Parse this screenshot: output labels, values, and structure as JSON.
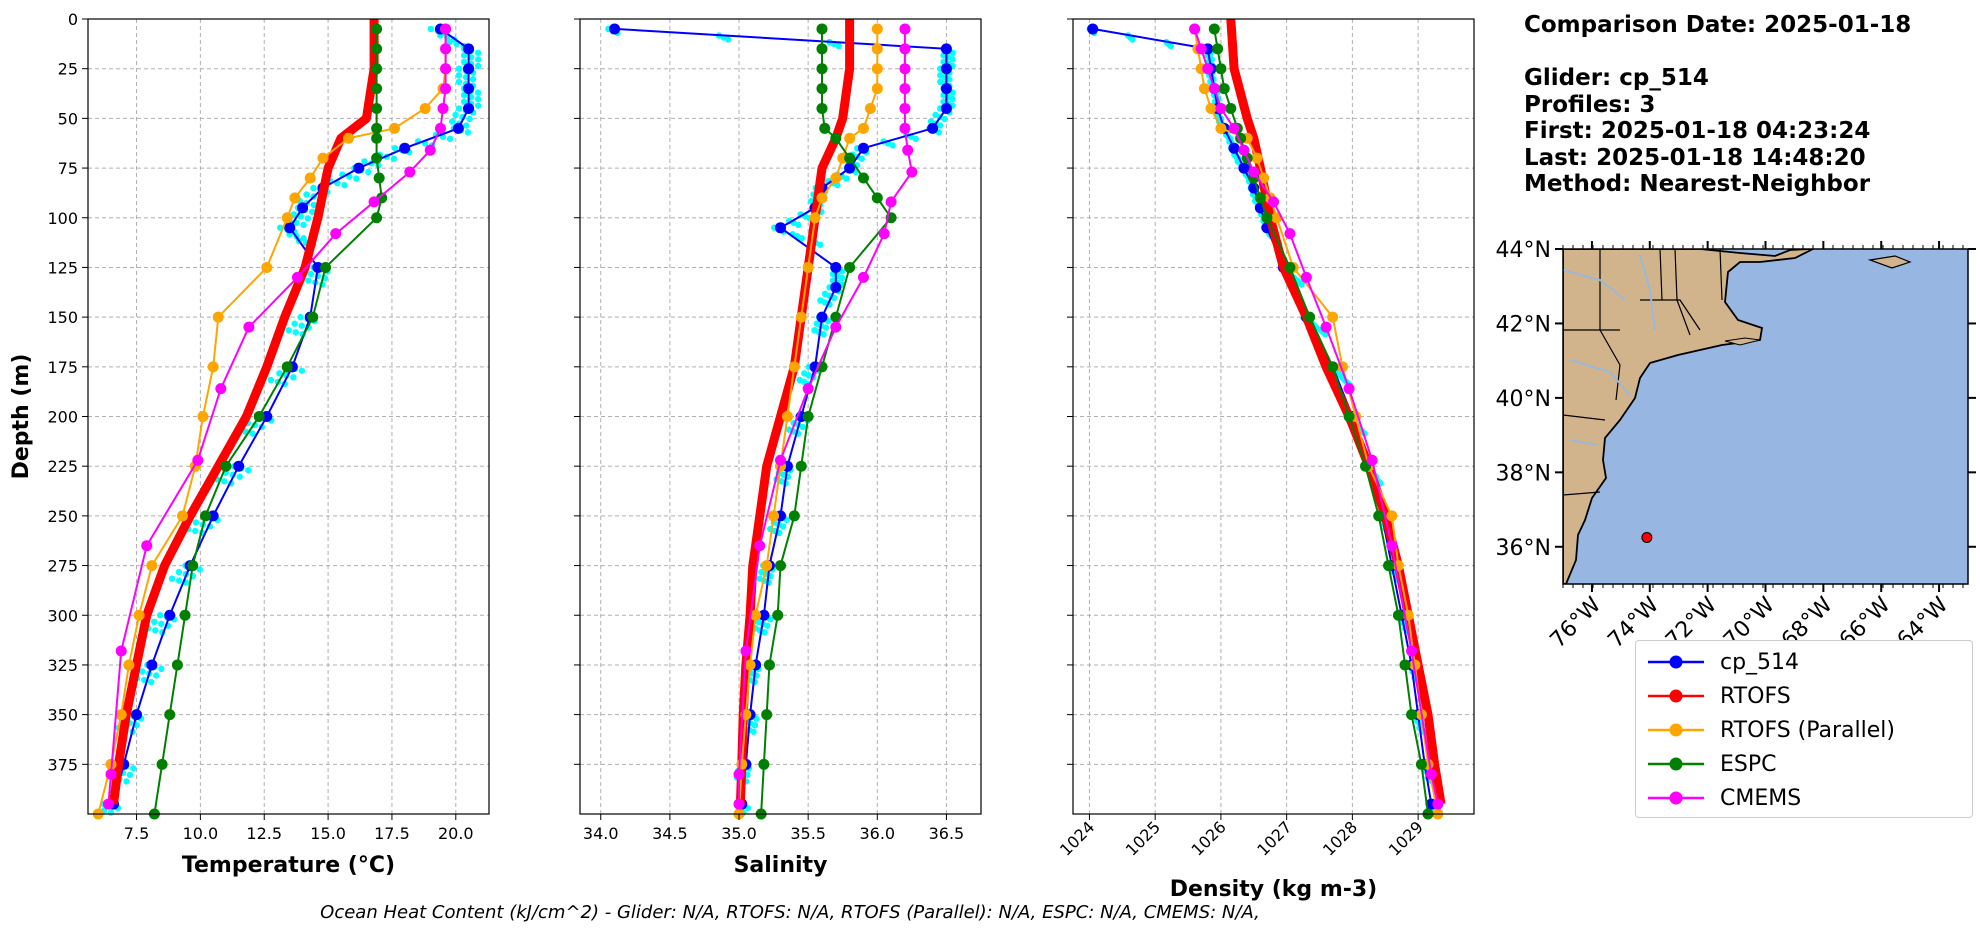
{
  "info": {
    "comparison_date": "Comparison Date: 2025-01-18",
    "glider": "Glider: cp_514",
    "profiles": "Profiles: 3",
    "first": "First: 2025-01-18 04:23:24",
    "last": "Last: 2025-01-18 14:48:20",
    "method": "Method: Nearest-Neighbor"
  },
  "caption": "Ocean Heat Content (kJ/cm^2) - Glider: N/A,  RTOFS: N/A,  RTOFS (Parallel): N/A,  ESPC: N/A,  CMEMS: N/A,",
  "colors": {
    "cp_514": "#0000ff",
    "RTOFS": "#ff0000",
    "RTOFS (Parallel)": "#ffa500",
    "ESPC": "#008000",
    "CMEMS": "#ff00ff",
    "glider_raw": "#00ffff",
    "land": "#d2b48c",
    "ocean": "#97b6e1",
    "rivers": "#9ab8d8"
  },
  "legend": [
    {
      "label": "cp_514",
      "color": "#0000ff"
    },
    {
      "label": "RTOFS",
      "color": "#ff0000"
    },
    {
      "label": "RTOFS (Parallel)",
      "color": "#ffa500"
    },
    {
      "label": "ESPC",
      "color": "#008000"
    },
    {
      "label": "CMEMS",
      "color": "#ff00ff"
    }
  ],
  "chart_data": [
    {
      "type": "line",
      "xlabel": "Temperature (°C)",
      "ylabel": "Depth (m)",
      "xlim": [
        5.6,
        21.3
      ],
      "ylim": [
        400,
        0
      ],
      "xticks": [
        7.5,
        10.0,
        12.5,
        15.0,
        17.5,
        20.0
      ],
      "xticklabels": [
        "7.5",
        "10.0",
        "12.5",
        "15.0",
        "17.5",
        "20.0"
      ],
      "yticks": [
        0,
        25,
        50,
        75,
        100,
        125,
        150,
        175,
        200,
        225,
        250,
        275,
        300,
        325,
        350,
        375
      ],
      "grid": true,
      "series": [
        {
          "name": "cp_514",
          "depth": [
            5,
            15,
            25,
            35,
            45,
            55,
            65,
            75,
            85,
            95,
            105,
            125,
            150,
            175,
            200,
            225,
            250,
            275,
            300,
            325,
            350,
            375,
            395
          ],
          "values": [
            19.4,
            20.5,
            20.5,
            20.5,
            20.5,
            20.1,
            18.0,
            16.2,
            14.8,
            14.0,
            13.5,
            14.6,
            14.3,
            13.6,
            12.6,
            11.5,
            10.5,
            9.6,
            8.8,
            8.1,
            7.5,
            7.0,
            6.6
          ]
        },
        {
          "name": "RTOFS",
          "depth": [
            0,
            25,
            50,
            60,
            75,
            100,
            125,
            150,
            175,
            200,
            225,
            250,
            275,
            300,
            325,
            350,
            375,
            395
          ],
          "values": [
            16.8,
            16.8,
            16.5,
            15.5,
            15.0,
            14.6,
            14.1,
            13.3,
            12.6,
            11.8,
            10.7,
            9.6,
            8.6,
            7.9,
            7.5,
            7.1,
            6.8,
            6.6
          ]
        },
        {
          "name": "RTOFS (Parallel)",
          "depth": [
            5,
            15,
            25,
            35,
            45,
            55,
            60,
            70,
            80,
            90,
            100,
            125,
            150,
            175,
            200,
            225,
            250,
            275,
            300,
            325,
            350,
            375,
            400
          ],
          "values": [
            19.6,
            19.6,
            19.6,
            19.5,
            18.8,
            17.6,
            15.8,
            14.8,
            14.3,
            13.7,
            13.4,
            12.6,
            10.7,
            10.5,
            10.1,
            9.8,
            9.3,
            8.1,
            7.6,
            7.2,
            6.9,
            6.5,
            6.0
          ]
        },
        {
          "name": "ESPC",
          "depth": [
            5,
            15,
            25,
            35,
            45,
            55,
            60,
            70,
            80,
            90,
            100,
            125,
            150,
            175,
            200,
            225,
            250,
            275,
            300,
            325,
            350,
            375,
            400
          ],
          "values": [
            16.9,
            16.9,
            16.9,
            16.9,
            16.9,
            16.9,
            16.9,
            16.9,
            17.0,
            17.1,
            16.9,
            14.9,
            14.4,
            13.4,
            12.3,
            11.0,
            10.2,
            9.7,
            9.4,
            9.1,
            8.8,
            8.5,
            8.2
          ]
        },
        {
          "name": "CMEMS",
          "depth": [
            5,
            15,
            25,
            35,
            45,
            55,
            66,
            77,
            92,
            108,
            130,
            155,
            186,
            222,
            265,
            318,
            380,
            395
          ],
          "values": [
            19.6,
            19.6,
            19.6,
            19.6,
            19.5,
            19.4,
            19.0,
            18.2,
            16.8,
            15.3,
            13.8,
            11.9,
            10.8,
            9.9,
            7.9,
            6.9,
            6.5,
            6.4
          ]
        }
      ]
    },
    {
      "type": "line",
      "xlabel": "Salinity",
      "xlim": [
        33.85,
        36.75
      ],
      "ylim": [
        400,
        0
      ],
      "xticks": [
        34.0,
        34.5,
        35.0,
        35.5,
        36.0,
        36.5
      ],
      "xticklabels": [
        "34.0",
        "34.5",
        "35.0",
        "35.5",
        "36.0",
        "36.5"
      ],
      "grid": true,
      "series": [
        {
          "name": "cp_514",
          "depth": [
            5,
            15,
            25,
            35,
            45,
            55,
            65,
            75,
            85,
            95,
            105,
            125,
            135,
            150,
            175,
            200,
            225,
            250,
            275,
            300,
            325,
            350,
            375,
            395
          ],
          "values": [
            34.1,
            36.5,
            36.5,
            36.5,
            36.5,
            36.4,
            35.9,
            35.8,
            35.6,
            35.55,
            35.3,
            35.7,
            35.7,
            35.6,
            35.55,
            35.45,
            35.35,
            35.3,
            35.22,
            35.18,
            35.12,
            35.08,
            35.05,
            35.02
          ]
        },
        {
          "name": "RTOFS",
          "depth": [
            0,
            25,
            50,
            60,
            75,
            100,
            125,
            150,
            175,
            200,
            225,
            250,
            275,
            300,
            325,
            350,
            375,
            395
          ],
          "values": [
            35.8,
            35.8,
            35.75,
            35.7,
            35.6,
            35.55,
            35.5,
            35.45,
            35.4,
            35.3,
            35.2,
            35.15,
            35.1,
            35.08,
            35.05,
            35.03,
            35.02,
            35.01
          ]
        },
        {
          "name": "RTOFS (Parallel)",
          "depth": [
            5,
            15,
            25,
            35,
            45,
            55,
            60,
            70,
            80,
            90,
            100,
            125,
            150,
            175,
            200,
            225,
            250,
            275,
            300,
            325,
            350,
            375,
            400
          ],
          "values": [
            36.0,
            36.0,
            36.0,
            36.0,
            35.95,
            35.9,
            35.8,
            35.75,
            35.7,
            35.6,
            35.55,
            35.5,
            35.45,
            35.4,
            35.35,
            35.3,
            35.25,
            35.2,
            35.12,
            35.08,
            35.05,
            35.02,
            35.0
          ]
        },
        {
          "name": "ESPC",
          "depth": [
            5,
            15,
            25,
            35,
            45,
            55,
            60,
            70,
            80,
            90,
            100,
            125,
            150,
            175,
            200,
            225,
            250,
            275,
            300,
            325,
            350,
            375,
            400
          ],
          "values": [
            35.6,
            35.6,
            35.6,
            35.6,
            35.6,
            35.62,
            35.7,
            35.8,
            35.9,
            36.0,
            36.1,
            35.8,
            35.7,
            35.6,
            35.5,
            35.45,
            35.4,
            35.3,
            35.28,
            35.22,
            35.2,
            35.18,
            35.16
          ]
        },
        {
          "name": "CMEMS",
          "depth": [
            5,
            15,
            25,
            35,
            45,
            55,
            66,
            77,
            92,
            108,
            130,
            155,
            186,
            222,
            265,
            318,
            380,
            395
          ],
          "values": [
            36.2,
            36.2,
            36.2,
            36.2,
            36.2,
            36.2,
            36.22,
            36.25,
            36.1,
            36.05,
            35.9,
            35.7,
            35.5,
            35.3,
            35.15,
            35.05,
            35.0,
            35.0
          ]
        }
      ]
    },
    {
      "type": "line",
      "xlabel": "Density (kg m-3)",
      "xlim": [
        1023.75,
        1029.85
      ],
      "ylim": [
        400,
        0
      ],
      "xticks": [
        1024,
        1025,
        1026,
        1027,
        1028,
        1029
      ],
      "xticklabels": [
        "1024",
        "1025",
        "1026",
        "1027",
        "1028",
        "1029"
      ],
      "grid": true,
      "series": [
        {
          "name": "cp_514",
          "depth": [
            5,
            15,
            25,
            35,
            45,
            55,
            65,
            75,
            85,
            95,
            105,
            125,
            150,
            175,
            200,
            225,
            250,
            275,
            300,
            325,
            350,
            375,
            395
          ],
          "values": [
            1024.05,
            1025.8,
            1025.85,
            1025.9,
            1025.95,
            1026.05,
            1026.2,
            1026.35,
            1026.5,
            1026.6,
            1026.7,
            1026.95,
            1027.3,
            1027.7,
            1028.0,
            1028.25,
            1028.45,
            1028.6,
            1028.75,
            1028.9,
            1029.0,
            1029.1,
            1029.2
          ]
        },
        {
          "name": "RTOFS",
          "depth": [
            0,
            25,
            50,
            60,
            75,
            100,
            125,
            150,
            175,
            200,
            225,
            250,
            275,
            300,
            325,
            350,
            375,
            395
          ],
          "values": [
            1026.15,
            1026.2,
            1026.4,
            1026.5,
            1026.6,
            1026.75,
            1026.95,
            1027.3,
            1027.6,
            1027.95,
            1028.25,
            1028.5,
            1028.7,
            1028.85,
            1029.0,
            1029.15,
            1029.25,
            1029.35
          ]
        },
        {
          "name": "RTOFS (Parallel)",
          "depth": [
            5,
            15,
            25,
            35,
            45,
            55,
            60,
            70,
            80,
            90,
            100,
            125,
            150,
            175,
            200,
            225,
            250,
            275,
            300,
            325,
            350,
            375,
            400
          ],
          "values": [
            1025.6,
            1025.65,
            1025.7,
            1025.75,
            1025.85,
            1026.0,
            1026.4,
            1026.55,
            1026.65,
            1026.75,
            1026.85,
            1027.1,
            1027.7,
            1027.85,
            1028.05,
            1028.25,
            1028.6,
            1028.7,
            1028.85,
            1028.95,
            1029.05,
            1029.15,
            1029.3
          ]
        },
        {
          "name": "ESPC",
          "depth": [
            5,
            15,
            25,
            35,
            45,
            55,
            60,
            70,
            80,
            90,
            100,
            125,
            150,
            175,
            200,
            225,
            250,
            275,
            300,
            325,
            350,
            375,
            400
          ],
          "values": [
            1025.9,
            1025.95,
            1026.0,
            1026.05,
            1026.15,
            1026.25,
            1026.3,
            1026.4,
            1026.5,
            1026.6,
            1026.7,
            1027.05,
            1027.35,
            1027.7,
            1027.95,
            1028.2,
            1028.4,
            1028.55,
            1028.7,
            1028.8,
            1028.9,
            1029.05,
            1029.15
          ]
        },
        {
          "name": "CMEMS",
          "depth": [
            5,
            15,
            25,
            35,
            45,
            55,
            66,
            77,
            92,
            108,
            130,
            155,
            186,
            222,
            265,
            318,
            380,
            395
          ],
          "values": [
            1025.6,
            1025.7,
            1025.8,
            1025.9,
            1026.0,
            1026.2,
            1026.35,
            1026.5,
            1026.8,
            1027.05,
            1027.3,
            1027.6,
            1027.95,
            1028.3,
            1028.6,
            1028.9,
            1029.2,
            1029.3
          ]
        }
      ]
    },
    {
      "type": "map",
      "xticklabels": [
        "76°W",
        "74°W",
        "72°W",
        "70°W",
        "68°W",
        "66°W",
        "64°W"
      ],
      "yticklabels": [
        "44°N",
        "42°N",
        "40°N",
        "38°N",
        "36°N"
      ],
      "xlim": [
        -77.0,
        -63.0
      ],
      "ylim": [
        35.0,
        44.0
      ],
      "marker": {
        "lon": -74.1,
        "lat": 36.25
      }
    }
  ]
}
